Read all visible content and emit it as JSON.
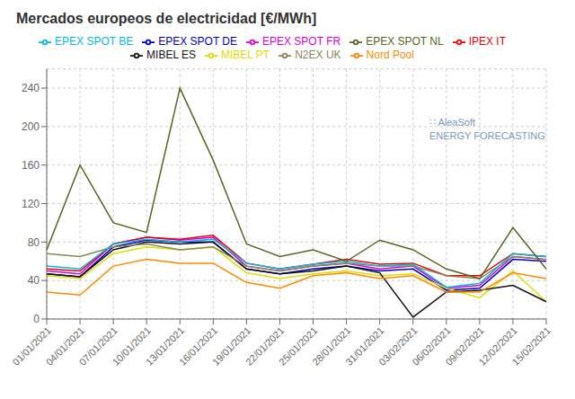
{
  "chart_data": {
    "type": "line",
    "title": "Mercados europeos de electricidad [€/MWh]",
    "categories": [
      "01/01/2021",
      "04/01/2021",
      "07/01/2021",
      "10/01/2021",
      "13/01/2021",
      "16/01/2021",
      "19/01/2021",
      "22/01/2021",
      "25/01/2021",
      "28/01/2021",
      "31/01/2021",
      "03/02/2021",
      "06/02/2021",
      "09/02/2021",
      "12/02/2021",
      "15/02/2021"
    ],
    "series": [
      {
        "name": "EPEX SPOT DE",
        "color": "#0000cc",
        "values": [
          47,
          44,
          75,
          82,
          80,
          80,
          52,
          47,
          52,
          55,
          50,
          52,
          30,
          32,
          62,
          60
        ]
      },
      {
        "name": "EPEX SPOT FR",
        "color": "#dd00dd",
        "values": [
          50,
          47,
          78,
          85,
          82,
          85,
          55,
          50,
          55,
          58,
          52,
          55,
          32,
          35,
          65,
          62
        ]
      },
      {
        "name": "MIBEL PT",
        "color": "#dddd00",
        "values": [
          45,
          42,
          68,
          75,
          72,
          75,
          48,
          42,
          47,
          50,
          45,
          47,
          32,
          22,
          50,
          18
        ]
      },
      {
        "name": "MIBEL ES",
        "color": "#111111",
        "values": [
          47,
          44,
          72,
          80,
          78,
          80,
          52,
          47,
          50,
          55,
          48,
          2,
          28,
          30,
          35,
          18
        ]
      },
      {
        "name": "IPEX IT",
        "color": "#ee0000",
        "values": [
          52,
          50,
          78,
          85,
          83,
          87,
          58,
          52,
          57,
          62,
          57,
          58,
          45,
          45,
          68,
          65
        ]
      },
      {
        "name": "N2EX UK",
        "color": "#888855",
        "values": [
          68,
          65,
          75,
          78,
          72,
          75,
          55,
          50,
          55,
          58,
          55,
          55,
          45,
          42,
          65,
          62
        ]
      },
      {
        "name": "EPEX SPOT BE",
        "color": "#00bbdd",
        "values": [
          55,
          52,
          78,
          83,
          80,
          83,
          58,
          52,
          57,
          60,
          55,
          57,
          33,
          37,
          68,
          65
        ]
      },
      {
        "name": "EPEX SPOT NL",
        "color": "#556622",
        "values": [
          72,
          160,
          100,
          90,
          240,
          165,
          78,
          65,
          72,
          60,
          82,
          72,
          52,
          42,
          95,
          52
        ]
      },
      {
        "name": "Nord Pool",
        "color": "#ff8800",
        "values": [
          28,
          25,
          55,
          62,
          58,
          58,
          38,
          32,
          45,
          48,
          42,
          45,
          28,
          28,
          48,
          42
        ]
      }
    ],
    "ylim": [
      0,
      260
    ],
    "yticks": [
      0,
      40,
      80,
      120,
      160,
      200,
      240
    ],
    "grid": true,
    "legend": "top",
    "annotations": [
      "∷ AleaSoft",
      "ENERGY FORECASTING"
    ]
  }
}
